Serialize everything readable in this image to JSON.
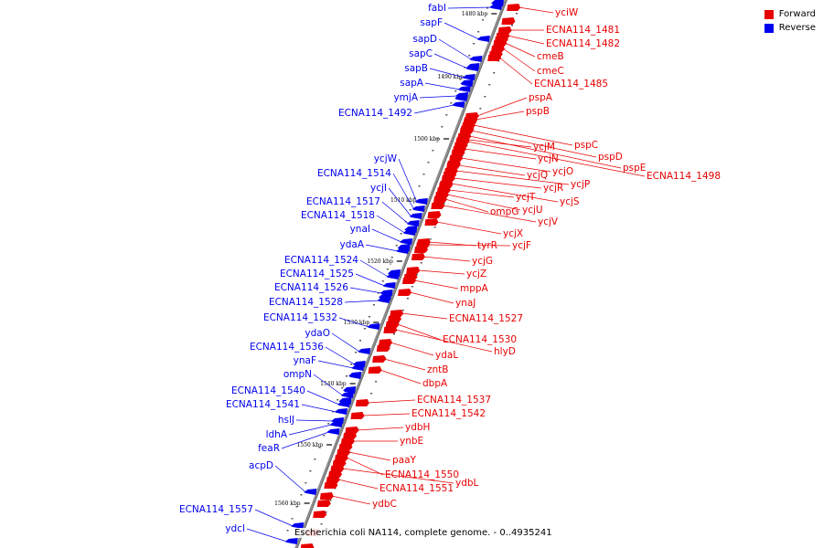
{
  "legend": {
    "forward": {
      "label": "Forward",
      "color": "#e80000"
    },
    "reverse": {
      "label": "Reverse",
      "color": "#0000ee"
    }
  },
  "caption": "Escherichia coli NA114, complete genome. - 0..4935241",
  "ticks": [
    "1480 kbp",
    "1490 kbp",
    "1500 kbp",
    "1510 kbp",
    "1520 kbp",
    "1530 kbp",
    "1540 kbp",
    "1550 kbp",
    "1560 kbp"
  ],
  "reverse_genes": [
    "fabI",
    "sapF",
    "sapD",
    "sapC",
    "sapB",
    "sapA",
    "ymjA",
    "ECNA114_1492",
    "ycjW",
    "ECNA114_1514",
    "ycjI",
    "ECNA114_1517",
    "ECNA114_1518",
    "ynaI",
    "ydaA",
    "ECNA114_1524",
    "ECNA114_1525",
    "ECNA114_1526",
    "ECNA114_1528",
    "ECNA114_1532",
    "ydaO",
    "ECNA114_1536",
    "ynaF",
    "ompN",
    "ECNA114_1540",
    "ECNA114_1541",
    "hslJ",
    "ldhA",
    "feaR",
    "acpD",
    "ECNA114_1557",
    "ydcI"
  ],
  "forward_genes": [
    "yciW",
    "ECNA114_1481",
    "ECNA114_1482",
    "cmeB",
    "cmeC",
    "ECNA114_1485",
    "pspA",
    "pspB",
    "pspC",
    "ycjM",
    "pspD",
    "ycjN",
    "pspE",
    "ycjO",
    "ECNA114_1498",
    "ycjQ",
    "ycjP",
    "ycjR",
    "ycjS",
    "ycjT",
    "ycjU",
    "ompG",
    "ycjV",
    "ycjX",
    "tyrR",
    "ycjF",
    "ycjG",
    "ycjZ",
    "mppA",
    "ynaJ",
    "ECNA114_1527",
    "ECNA114_1530",
    "hlyD",
    "ydaL",
    "zntB",
    "dbpA",
    "ECNA114_1537",
    "ECNA114_1542",
    "ydbH",
    "ynbE",
    "paaY",
    "ECNA114_1550",
    "ydbL",
    "ECNA114_1551",
    "ydbC"
  ]
}
